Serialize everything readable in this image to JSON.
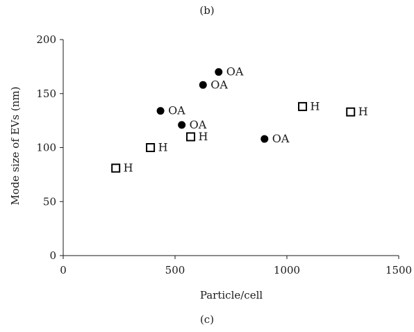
{
  "labels": {
    "top": "(b)",
    "bottom": "(c)"
  },
  "chart_data": {
    "type": "scatter",
    "title": "",
    "xlabel": "Particle/cell",
    "ylabel": "Mode size of EVs (nm)",
    "xlim": [
      0,
      1500
    ],
    "ylim": [
      0,
      200
    ],
    "xticks": [
      0,
      500,
      1000,
      1500
    ],
    "yticks": [
      0,
      50,
      100,
      150,
      200
    ],
    "grid": false,
    "legend": "none",
    "series": [
      {
        "marker": "filled-circle",
        "color": "#000000",
        "points": [
          {
            "x": 435,
            "y": 134,
            "label": "OA"
          },
          {
            "x": 530,
            "y": 121,
            "label": "OA"
          },
          {
            "x": 625,
            "y": 158,
            "label": "OA"
          },
          {
            "x": 695,
            "y": 170,
            "label": "OA"
          },
          {
            "x": 900,
            "y": 108,
            "label": "OA"
          }
        ]
      },
      {
        "marker": "open-square",
        "color": "#000000",
        "points": [
          {
            "x": 235,
            "y": 81,
            "label": "H"
          },
          {
            "x": 390,
            "y": 100,
            "label": "H"
          },
          {
            "x": 570,
            "y": 110,
            "label": "H"
          },
          {
            "x": 1070,
            "y": 138,
            "label": "H"
          },
          {
            "x": 1285,
            "y": 133,
            "label": "H"
          }
        ]
      }
    ]
  }
}
